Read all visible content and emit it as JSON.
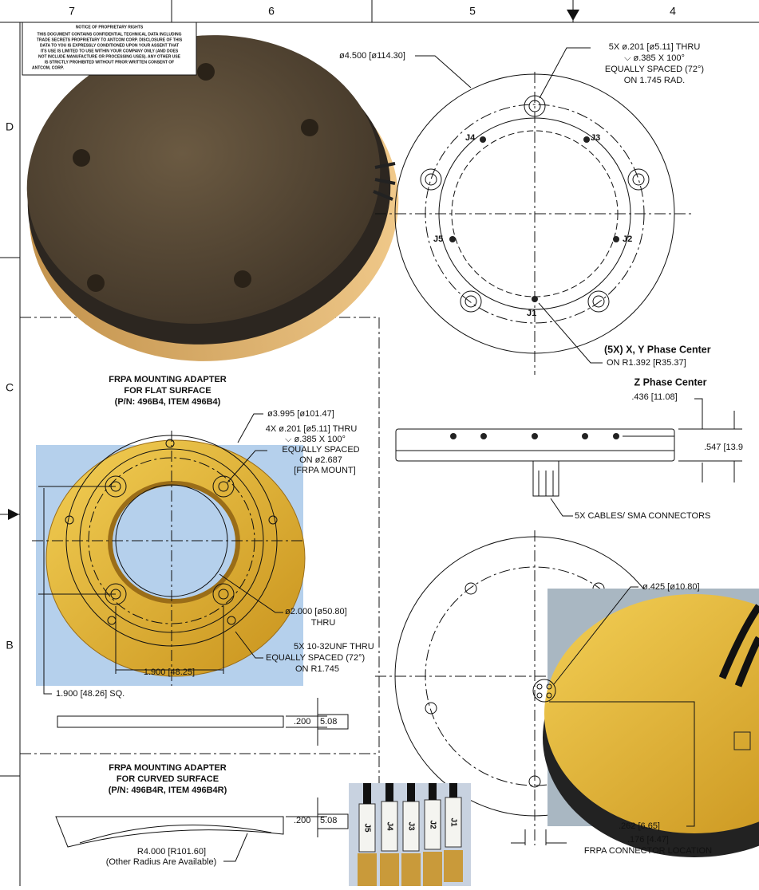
{
  "zones": {
    "columns": [
      "7",
      "6",
      "5",
      "4"
    ],
    "rows": [
      "D",
      "C",
      "B"
    ]
  },
  "notice": {
    "title": "NOTICE OF PROPRIETARY RIGHTS",
    "lines": [
      "THIS DOCUMENT CONTAINS CONFIDENTIAL TECHNICAL DATA INCLUDING",
      "TRADE SECRETS PROPRIETARY TO ANTCOM CORP. DISCLOSURE OF THIS",
      "DATA TO YOU IS EXPRESSLY CONDITIONED UPON YOUR ASSENT THAT",
      "ITS USE IS LIMITED TO USE WITHIN YOUR COMPANY ONLY (AND DOES",
      "NOT INCLUDE MANUFACTURE OR PROCESSING USES). ANY OTHER USE",
      "IS STRICTLY PROHIBITED WITHOUT PRIOR WRITTEN CONSENT OF",
      "ANTCOM, CORP."
    ]
  },
  "top_view": {
    "diameter": "ø4.500 [ø114.30]",
    "hole_note": [
      "5X ø.201 [ø5.11] THRU",
      "⌵ ø.385 X 100°",
      "EQUALLY SPACED (72°)",
      "ON 1.745 RAD."
    ],
    "jacks": [
      "J1",
      "J2",
      "J3",
      "J4",
      "J5"
    ],
    "phase_center": "(5X) X, Y Phase Center",
    "phase_radius": "ON R1.392 [R35.37]"
  },
  "side_view": {
    "z_title": "Z Phase Center",
    "z_dim": ".436 [11.08]",
    "height_dim": ".547 [13.9",
    "cables": "5X CABLES/ SMA CONNECTORS"
  },
  "flat_adapter": {
    "title": [
      "FRPA MOUNTING ADAPTER",
      "FOR FLAT SURFACE",
      "(P/N: 496B4, ITEM 496B4)"
    ],
    "diameter": "ø3.995 [ø101.47]",
    "mount_note": [
      "4X ø.201 [ø5.11] THRU",
      "⌵ ø.385 X 100°",
      "EQUALLY SPACED",
      "ON ø2.687",
      "[FRPA MOUNT]"
    ],
    "bore": [
      "ø2.000 [ø50.80]",
      "THRU"
    ],
    "thread_note": [
      "5X 10-32UNF THRU",
      "EQUALLY SPACED (72°)",
      "ON R1.745"
    ],
    "spacing": "1.900 [48.25]",
    "square": "1.900 [48.26] SQ.",
    "thickness": [
      ".200",
      "5.08"
    ]
  },
  "curved_adapter": {
    "title": [
      "FRPA MOUNTING ADAPTER",
      "FOR CURVED SURFACE",
      "(P/N: 496B4R, ITEM 496B4R)"
    ],
    "thickness": [
      ".200",
      "5.08"
    ],
    "radius": "R4.000 [R101.60]",
    "radius_note": "(Other Radius Are Available)"
  },
  "bottom_view": {
    "connector_dia": "ø.425 [ø10.80]",
    "offset_y": ".262 [6.65]",
    "offset_x": ".176 [4.47]",
    "caption": "FRPA CONNECTOR LOCATION"
  },
  "cable_labels": [
    "J5",
    "J4",
    "J3",
    "J2",
    "J1"
  ]
}
